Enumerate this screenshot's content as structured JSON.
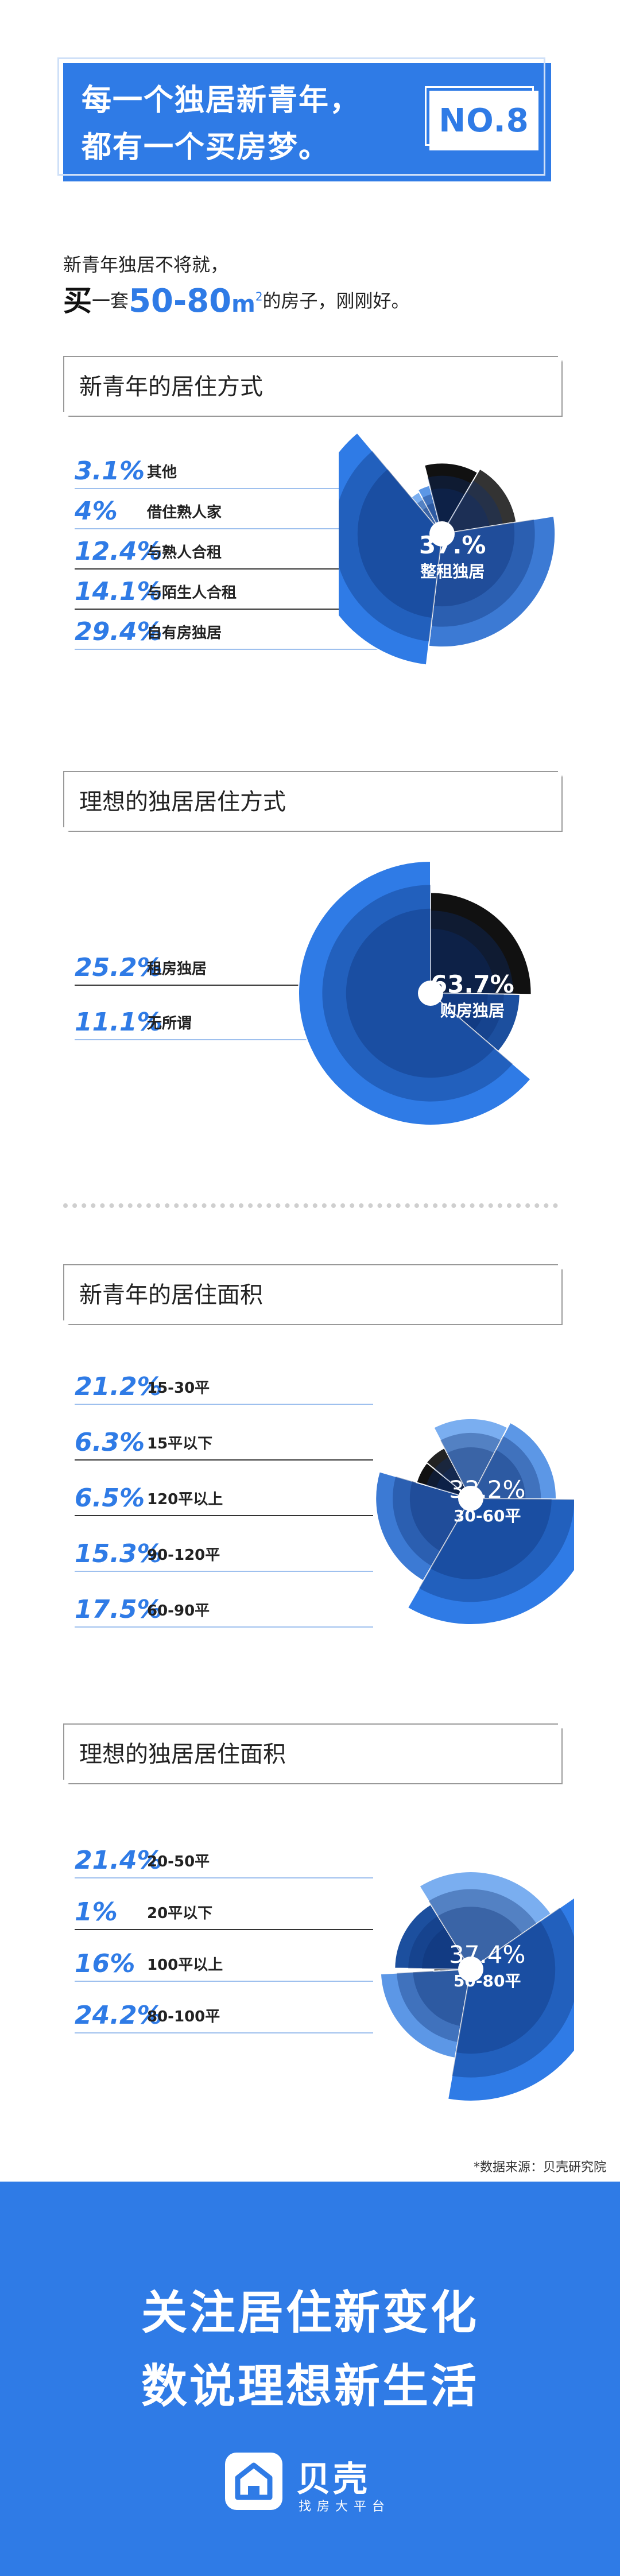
{
  "header": {
    "line1": "每一个独居新青年，",
    "line2": "都有一个买房梦。",
    "badge": "NO.8"
  },
  "intro": {
    "line1": "新青年独居不将就，",
    "buy": "买",
    "one_set": "一套",
    "range": "50-80",
    "unit": "m",
    "unit_sup": "2",
    "rest": "的房子，刚刚好。"
  },
  "colors": {
    "accent": "#2f7be6",
    "dark": "#111111",
    "navy": "#1c4f9e",
    "mid": "#3c7ad4",
    "light": "#5c97e6",
    "pale": "#7aaef0"
  },
  "chart_data": [
    {
      "type": "pie",
      "title": "新青年的居住方式",
      "center": {
        "value": "37.%",
        "label": "整租独居"
      },
      "categories": [
        "其他",
        "借住熟人家",
        "与熟人合租",
        "与陌生人合租",
        "自有房独居",
        "整租独居"
      ],
      "values": [
        3.1,
        4,
        12.4,
        14.1,
        29.4,
        37
      ],
      "value_labels": [
        "3.1%",
        "4%",
        "12.4%",
        "14.1%",
        "29.4%",
        "37.%"
      ]
    },
    {
      "type": "pie",
      "title": "理想的独居居住方式",
      "center": {
        "value": "63.7%",
        "label": "购房独居"
      },
      "categories": [
        "租房独居",
        "无所谓",
        "购房独居"
      ],
      "values": [
        25.2,
        11.1,
        63.7
      ],
      "value_labels": [
        "25.2%",
        "11.1%",
        "63.7%"
      ]
    },
    {
      "type": "pie",
      "title": "新青年的居住面积",
      "center": {
        "value": "33.2%",
        "label": "30-60平"
      },
      "categories": [
        "15-30平",
        "15平以下",
        "120平以上",
        "90-120平",
        "60-90平",
        "30-60平"
      ],
      "values": [
        21.2,
        6.3,
        6.5,
        15.3,
        17.5,
        33.2
      ],
      "value_labels": [
        "21.2%",
        "6.3%",
        "6.5%",
        "15.3%",
        "17.5%",
        "33.2%"
      ]
    },
    {
      "type": "pie",
      "title": "理想的独居居住面积",
      "center": {
        "value": "37.4%",
        "label": "50-80平"
      },
      "categories": [
        "20-50平",
        "20平以下",
        "100平以上",
        "80-100平",
        "50-80平"
      ],
      "values": [
        21.4,
        1,
        16,
        24.2,
        37.4
      ],
      "value_labels": [
        "21.4%",
        "1%",
        "16%",
        "24.2%",
        "37.4%"
      ]
    }
  ],
  "source": "*数据来源：贝壳研究院",
  "footer": {
    "line1": "关注居住新变化",
    "line2": "数说理想新生活",
    "logo_name": "贝壳",
    "logo_sub": "找房大平台"
  }
}
